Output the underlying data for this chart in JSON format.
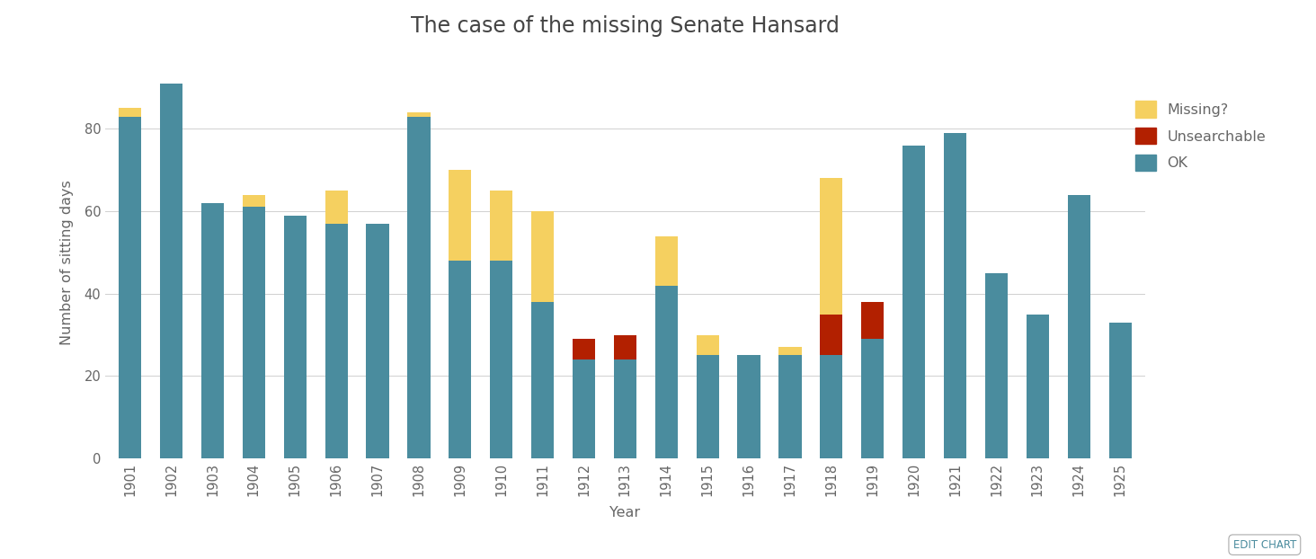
{
  "years": [
    1901,
    1902,
    1903,
    1904,
    1905,
    1906,
    1907,
    1908,
    1909,
    1910,
    1911,
    1912,
    1913,
    1914,
    1915,
    1916,
    1917,
    1918,
    1919,
    1920,
    1921,
    1922,
    1923,
    1924,
    1925
  ],
  "ok": [
    83,
    91,
    62,
    61,
    59,
    57,
    57,
    83,
    48,
    48,
    38,
    24,
    24,
    42,
    25,
    25,
    25,
    25,
    29,
    76,
    79,
    45,
    35,
    64,
    33
  ],
  "unsearchable": [
    0,
    0,
    0,
    0,
    0,
    0,
    0,
    0,
    0,
    0,
    0,
    5,
    6,
    0,
    0,
    0,
    0,
    10,
    9,
    0,
    0,
    0,
    0,
    0,
    0
  ],
  "missing": [
    2,
    0,
    0,
    3,
    0,
    8,
    0,
    1,
    22,
    17,
    22,
    0,
    0,
    12,
    5,
    0,
    2,
    33,
    0,
    0,
    0,
    0,
    0,
    0,
    0
  ],
  "color_ok": "#4a8c9e",
  "color_unsearchable": "#b22000",
  "color_missing": "#f5d060",
  "title": "The case of the missing Senate Hansard",
  "xlabel": "Year",
  "ylabel": "Number of sitting days",
  "legend_labels": [
    "Missing?",
    "Unsearchable",
    "OK"
  ],
  "background_color": "#ffffff",
  "grid_color": "#d0d0d0",
  "ylim": [
    0,
    95
  ]
}
